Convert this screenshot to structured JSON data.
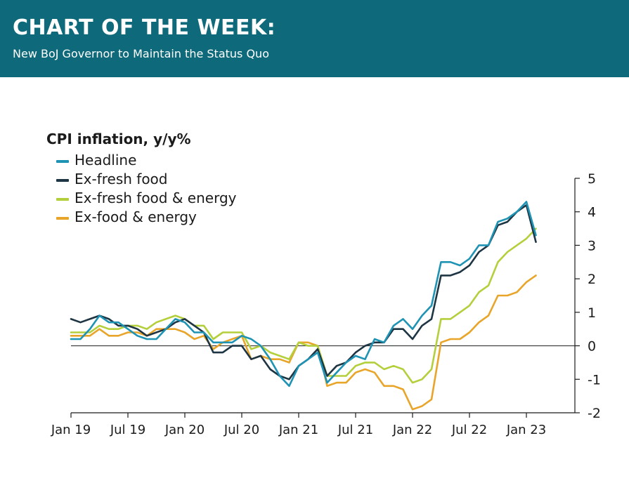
{
  "banner": {
    "title": "CHART OF THE WEEK:",
    "subtitle": "New BoJ Governor to Maintain the Status Quo",
    "color": "#0e6a7a"
  },
  "chart_data": {
    "type": "line",
    "title": "CPI inflation, y/y%",
    "xlabel": "",
    "ylabel": "",
    "x_tick_labels": [
      "Jan 19",
      "Jul 19",
      "Jan 20",
      "Jul 20",
      "Jan 21",
      "Jul 21",
      "Jan 22",
      "Jul 22",
      "Jan 23"
    ],
    "y_ticks": [
      5,
      4,
      3,
      2,
      1,
      0,
      -1,
      -2
    ],
    "y_tick_labels": [
      "5",
      "4",
      "3",
      "2",
      "1",
      "0",
      "-1",
      "-2"
    ],
    "ylim": [
      -2,
      5
    ],
    "y_axis_side": "right",
    "grid": false,
    "legend_position": "top-left",
    "x": [
      "2019-01",
      "2019-02",
      "2019-03",
      "2019-04",
      "2019-05",
      "2019-06",
      "2019-07",
      "2019-08",
      "2019-09",
      "2019-10",
      "2019-11",
      "2019-12",
      "2020-01",
      "2020-02",
      "2020-03",
      "2020-04",
      "2020-05",
      "2020-06",
      "2020-07",
      "2020-08",
      "2020-09",
      "2020-10",
      "2020-11",
      "2020-12",
      "2021-01",
      "2021-02",
      "2021-03",
      "2021-04",
      "2021-05",
      "2021-06",
      "2021-07",
      "2021-08",
      "2021-09",
      "2021-10",
      "2021-11",
      "2021-12",
      "2022-01",
      "2022-02",
      "2022-03",
      "2022-04",
      "2022-05",
      "2022-06",
      "2022-07",
      "2022-08",
      "2022-09",
      "2022-10",
      "2022-11",
      "2022-12",
      "2023-01",
      "2023-02"
    ],
    "series": [
      {
        "name": "Headline",
        "color": "#1e93b4",
        "values": [
          0.2,
          0.2,
          0.5,
          0.9,
          0.7,
          0.7,
          0.5,
          0.3,
          0.2,
          0.2,
          0.5,
          0.8,
          0.7,
          0.4,
          0.4,
          0.1,
          0.1,
          0.1,
          0.3,
          0.2,
          0.0,
          -0.4,
          -0.9,
          -1.2,
          -0.6,
          -0.4,
          -0.2,
          -1.1,
          -0.8,
          -0.5,
          -0.3,
          -0.4,
          0.2,
          0.1,
          0.6,
          0.8,
          0.5,
          0.9,
          1.2,
          2.5,
          2.5,
          2.4,
          2.6,
          3.0,
          3.0,
          3.7,
          3.8,
          4.0,
          4.3,
          3.3
        ]
      },
      {
        "name": "Ex-fresh food",
        "color": "#1e3544",
        "values": [
          0.8,
          0.7,
          0.8,
          0.9,
          0.8,
          0.6,
          0.6,
          0.5,
          0.3,
          0.4,
          0.5,
          0.7,
          0.8,
          0.6,
          0.4,
          -0.2,
          -0.2,
          0.0,
          0.0,
          -0.4,
          -0.3,
          -0.7,
          -0.9,
          -1.0,
          -0.6,
          -0.4,
          -0.1,
          -0.9,
          -0.6,
          -0.5,
          -0.2,
          0.0,
          0.1,
          0.1,
          0.5,
          0.5,
          0.2,
          0.6,
          0.8,
          2.1,
          2.1,
          2.2,
          2.4,
          2.8,
          3.0,
          3.6,
          3.7,
          4.0,
          4.2,
          3.1
        ]
      },
      {
        "name": "Ex-fresh food & energy",
        "color": "#b4cf3c",
        "values": [
          0.4,
          0.4,
          0.4,
          0.6,
          0.5,
          0.5,
          0.6,
          0.6,
          0.5,
          0.7,
          0.8,
          0.9,
          0.8,
          0.6,
          0.6,
          0.2,
          0.4,
          0.4,
          0.4,
          -0.1,
          0.0,
          -0.2,
          -0.3,
          -0.4,
          0.1,
          0.0,
          0.0,
          -0.9,
          -0.9,
          -0.9,
          -0.6,
          -0.5,
          -0.5,
          -0.7,
          -0.6,
          -0.7,
          -1.1,
          -1.0,
          -0.7,
          0.8,
          0.8,
          1.0,
          1.2,
          1.6,
          1.8,
          2.5,
          2.8,
          3.0,
          3.2,
          3.5
        ]
      },
      {
        "name": "Ex-food & energy",
        "color": "#e8a52a",
        "values": [
          0.3,
          0.3,
          0.3,
          0.5,
          0.3,
          0.3,
          0.4,
          0.4,
          0.3,
          0.5,
          0.5,
          0.5,
          0.4,
          0.2,
          0.3,
          -0.1,
          0.1,
          0.2,
          0.3,
          -0.4,
          -0.3,
          -0.4,
          -0.4,
          -0.5,
          0.1,
          0.1,
          0.0,
          -1.2,
          -1.1,
          -1.1,
          -0.8,
          -0.7,
          -0.8,
          -1.2,
          -1.2,
          -1.3,
          -1.9,
          -1.8,
          -1.6,
          0.1,
          0.2,
          0.2,
          0.4,
          0.7,
          0.9,
          1.5,
          1.5,
          1.6,
          1.9,
          2.1
        ]
      }
    ]
  }
}
